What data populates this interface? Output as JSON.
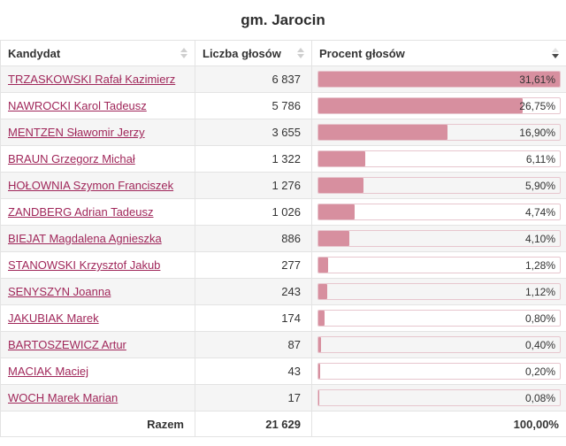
{
  "title": "gm. Jarocin",
  "colors": {
    "bar_fill": "#d78f9f",
    "bar_border": "#e7c6ce",
    "link": "#a0275a",
    "stripe": "#f5f5f5"
  },
  "table": {
    "columns": [
      {
        "label": "Kandydat",
        "sort": "none"
      },
      {
        "label": "Liczba głosów",
        "sort": "none"
      },
      {
        "label": "Procent głosów",
        "sort": "desc"
      }
    ],
    "rows": [
      {
        "candidate": "TRZASKOWSKI Rafał Kazimierz",
        "votes": "6 837",
        "percent_label": "31,61%",
        "percent_value": 31.61
      },
      {
        "candidate": "NAWROCKI Karol Tadeusz",
        "votes": "5 786",
        "percent_label": "26,75%",
        "percent_value": 26.75
      },
      {
        "candidate": "MENTZEN Sławomir Jerzy",
        "votes": "3 655",
        "percent_label": "16,90%",
        "percent_value": 16.9
      },
      {
        "candidate": "BRAUN Grzegorz Michał",
        "votes": "1 322",
        "percent_label": "6,11%",
        "percent_value": 6.11
      },
      {
        "candidate": "HOŁOWNIA Szymon Franciszek",
        "votes": "1 276",
        "percent_label": "5,90%",
        "percent_value": 5.9
      },
      {
        "candidate": "ZANDBERG Adrian Tadeusz",
        "votes": "1 026",
        "percent_label": "4,74%",
        "percent_value": 4.74
      },
      {
        "candidate": "BIEJAT Magdalena Agnieszka",
        "votes": "886",
        "percent_label": "4,10%",
        "percent_value": 4.1
      },
      {
        "candidate": "STANOWSKI Krzysztof Jakub",
        "votes": "277",
        "percent_label": "1,28%",
        "percent_value": 1.28
      },
      {
        "candidate": "SENYSZYN Joanna",
        "votes": "243",
        "percent_label": "1,12%",
        "percent_value": 1.12
      },
      {
        "candidate": "JAKUBIAK Marek",
        "votes": "174",
        "percent_label": "0,80%",
        "percent_value": 0.8
      },
      {
        "candidate": "BARTOSZEWICZ Artur",
        "votes": "87",
        "percent_label": "0,40%",
        "percent_value": 0.4
      },
      {
        "candidate": "MACIAK Maciej",
        "votes": "43",
        "percent_label": "0,20%",
        "percent_value": 0.2
      },
      {
        "candidate": "WOCH Marek Marian",
        "votes": "17",
        "percent_label": "0,08%",
        "percent_value": 0.08
      }
    ],
    "footer": {
      "label": "Razem",
      "votes": "21 629",
      "percent": "100,00%"
    }
  },
  "chart_data": {
    "type": "bar",
    "title": "gm. Jarocin",
    "categories": [
      "TRZASKOWSKI Rafał Kazimierz",
      "NAWROCKI Karol Tadeusz",
      "MENTZEN Sławomir Jerzy",
      "BRAUN Grzegorz Michał",
      "HOŁOWNIA Szymon Franciszek",
      "ZANDBERG Adrian Tadeusz",
      "BIEJAT Magdalena Agnieszka",
      "STANOWSKI Krzysztof Jakub",
      "SENYSZYN Joanna",
      "JAKUBIAK Marek",
      "BARTOSZEWICZ Artur",
      "MACIAK Maciej",
      "WOCH Marek Marian"
    ],
    "series": [
      {
        "name": "Liczba głosów",
        "values": [
          6837,
          5786,
          3655,
          1322,
          1276,
          1026,
          886,
          277,
          243,
          174,
          87,
          43,
          17
        ]
      },
      {
        "name": "Procent głosów",
        "values": [
          31.61,
          26.75,
          16.9,
          6.11,
          5.9,
          4.74,
          4.1,
          1.28,
          1.12,
          0.8,
          0.4,
          0.2,
          0.08
        ]
      }
    ],
    "total_votes": 21629,
    "total_percent": 100.0,
    "bar_scale_max": 31.61
  }
}
